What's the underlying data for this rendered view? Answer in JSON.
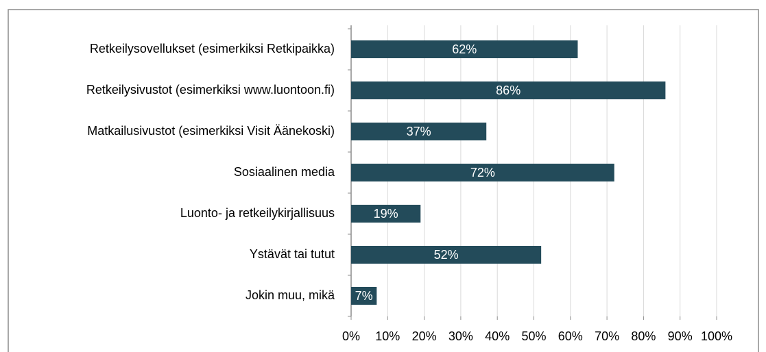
{
  "chart_data": {
    "type": "bar",
    "orientation": "horizontal",
    "categories": [
      "Retkeilysovellukset (esimerkiksi Retkipaikka)",
      "Retkeilysivustot (esimerkiksi www.luontoon.fi)",
      "Matkailusivustot (esimerkiksi Visit Äänekoski)",
      "Sosiaalinen media",
      "Luonto- ja retkeilykirjallisuus",
      "Ystävät tai tutut",
      "Jokin muu, mikä"
    ],
    "values": [
      62,
      86,
      37,
      72,
      19,
      52,
      7
    ],
    "value_labels": [
      "62%",
      "86%",
      "37%",
      "72%",
      "19%",
      "52%",
      "7%"
    ],
    "color": "#234b5a",
    "xlim": [
      0,
      100
    ],
    "xticks": [
      {
        "value": 0,
        "label": "0%"
      },
      {
        "value": 10,
        "label": "10%"
      },
      {
        "value": 20,
        "label": "20%"
      },
      {
        "value": 30,
        "label": "30%"
      },
      {
        "value": 40,
        "label": "40%"
      },
      {
        "value": 50,
        "label": "50%"
      },
      {
        "value": 60,
        "label": "60%"
      },
      {
        "value": 70,
        "label": "70%"
      },
      {
        "value": 80,
        "label": "80%"
      },
      {
        "value": 90,
        "label": "90%"
      },
      {
        "value": 100,
        "label": "100%"
      }
    ],
    "grid": true
  }
}
